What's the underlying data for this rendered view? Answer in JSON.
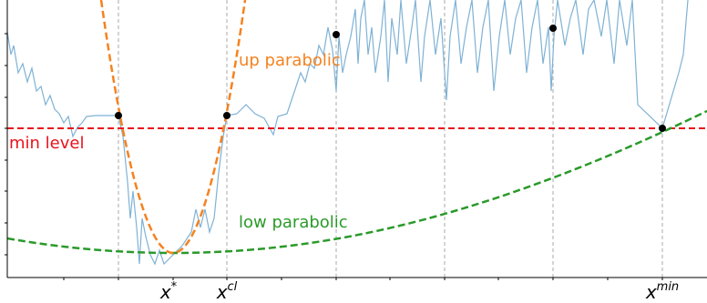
{
  "labels": {
    "up": "up parabolic",
    "min": "min level",
    "low": "low parabolic"
  },
  "xlabels": [
    {
      "base": "x",
      "sup": "*"
    },
    {
      "base": "x",
      "sup": "cl"
    },
    {
      "base": "x",
      "sup": "min"
    }
  ]
}
